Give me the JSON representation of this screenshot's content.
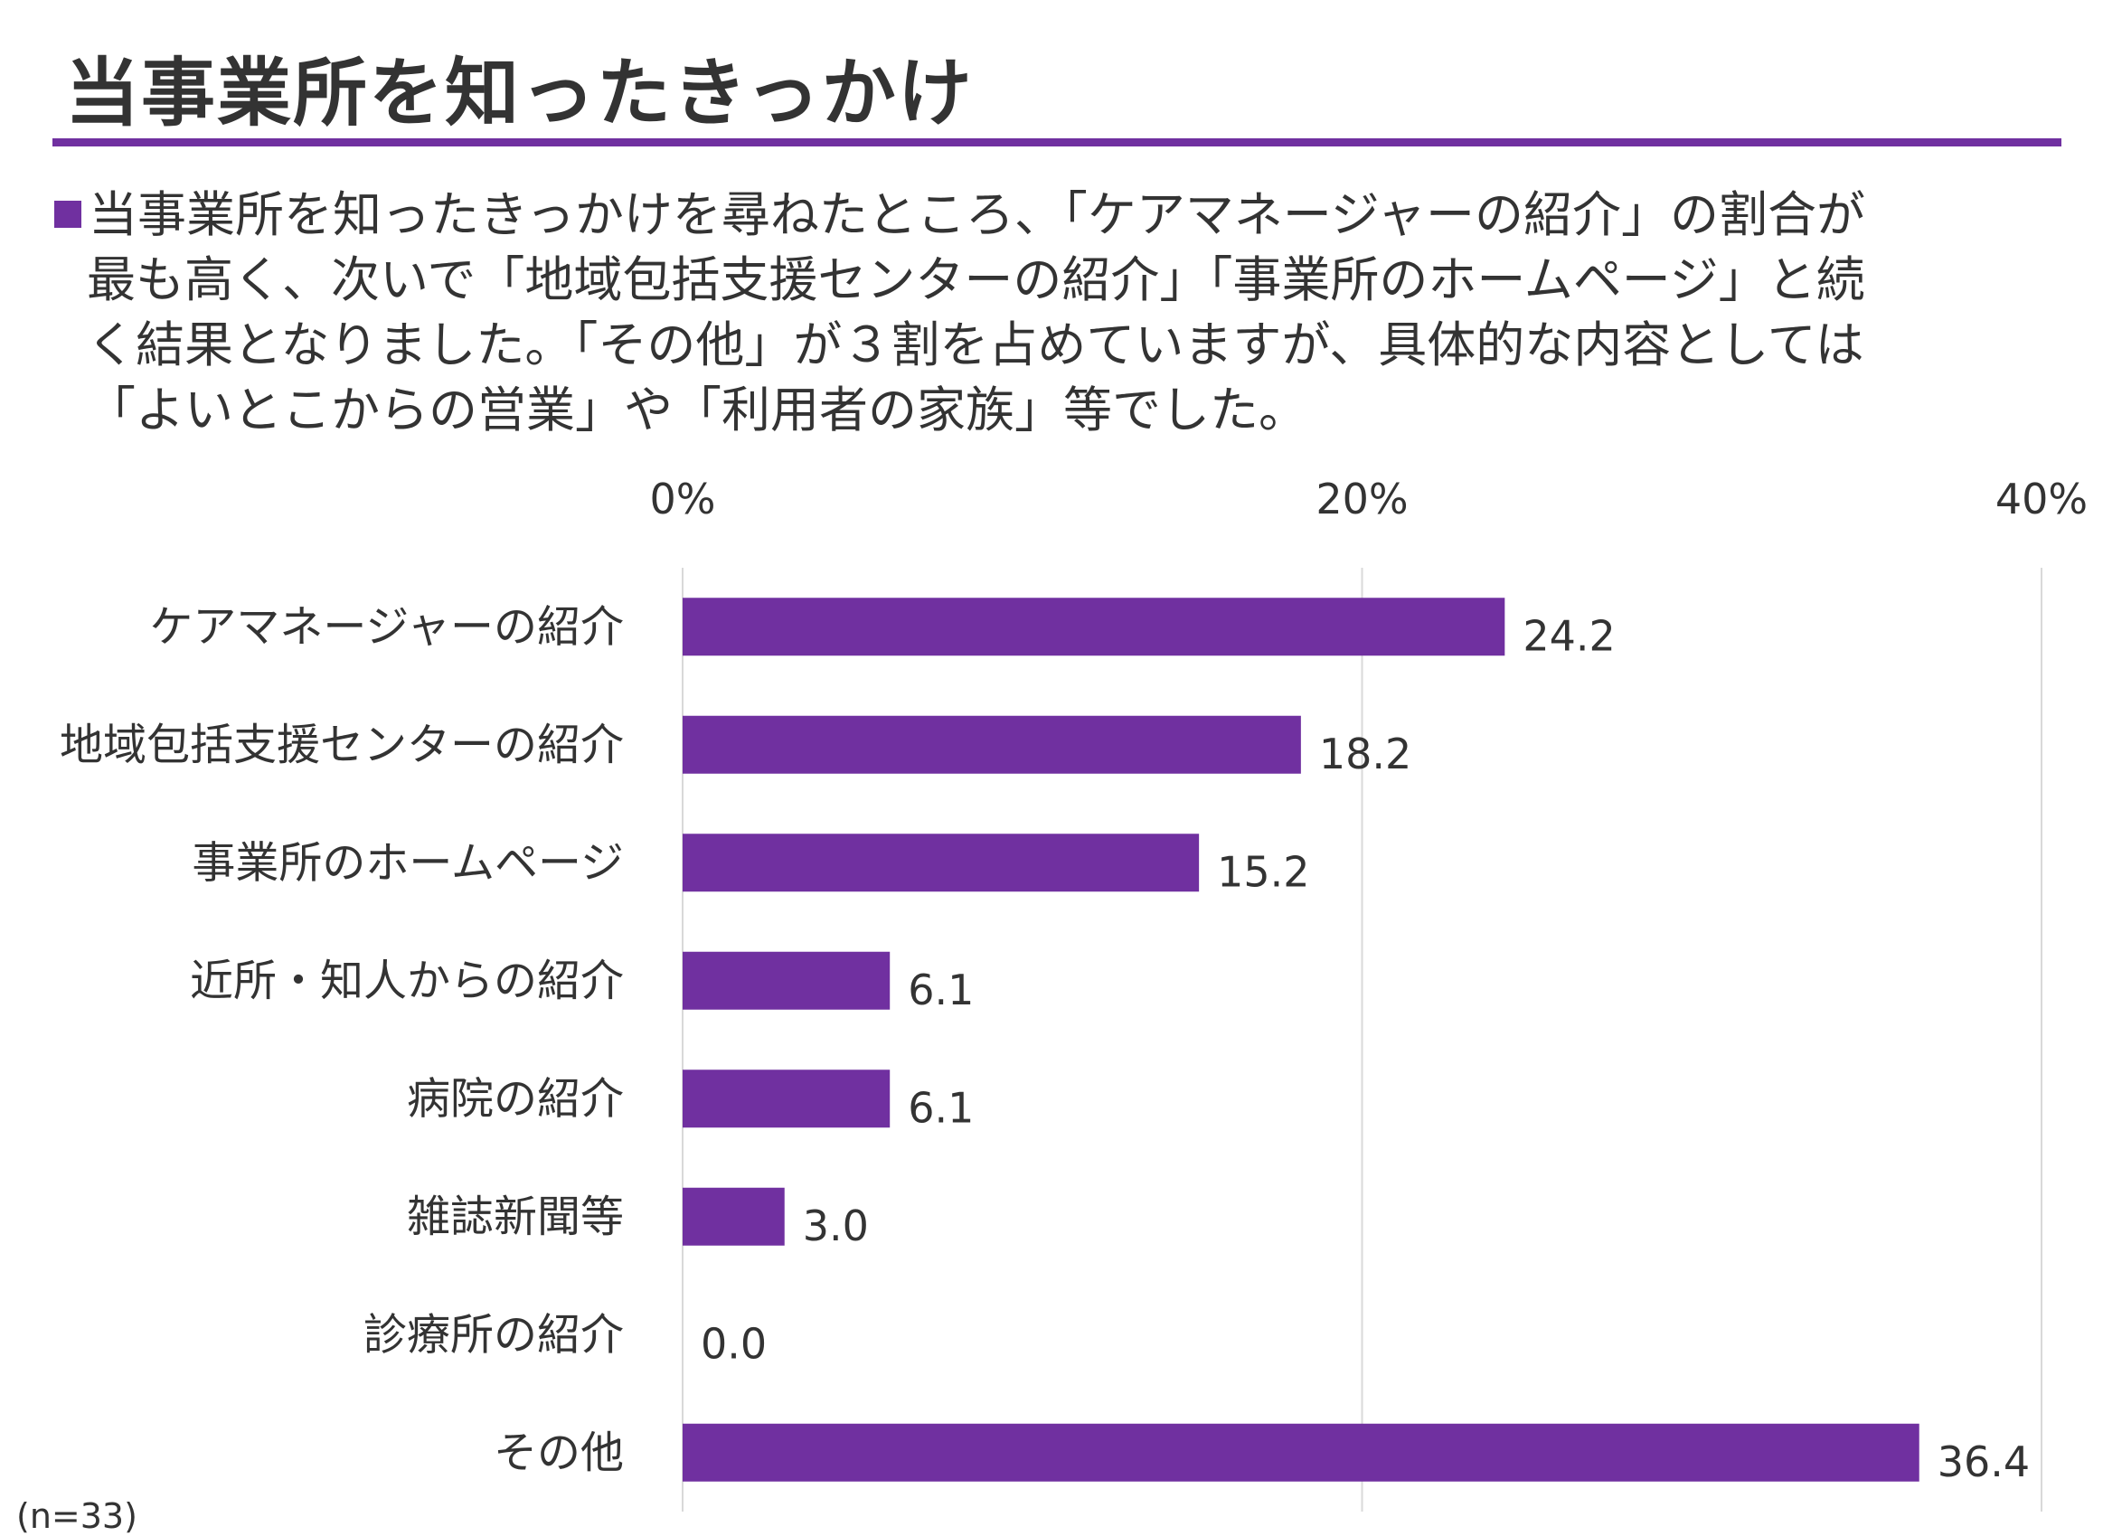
{
  "header": {
    "title": "当事業所を知ったきっかけ",
    "accent_color": "#7030A0"
  },
  "description": {
    "lines": [
      "当事業所を知ったきっかけを尋ねたところ、「ケアマネージャーの紹介」の割合が",
      "最も高く、次いで「地域包括支援センターの紹介」「事業所のホームページ」と続",
      "く結果となりました。「その他」が３割を占めていますが、具体的な内容としては",
      "「よいとこからの営業」や「利用者の家族」等でした。"
    ]
  },
  "chart_data": {
    "type": "bar",
    "orientation": "horizontal",
    "categories": [
      "ケアマネージャーの紹介",
      "地域包括支援センターの紹介",
      "事業所のホームページ",
      "近所・知人からの紹介",
      "病院の紹介",
      "雑誌新聞等",
      "診療所の紹介",
      "その他"
    ],
    "values": [
      24.2,
      18.2,
      15.2,
      6.1,
      6.1,
      3.0,
      0.0,
      36.4
    ],
    "value_labels": [
      "24.2",
      "18.2",
      "15.2",
      "6.1",
      "6.1",
      "3.0",
      "0.0",
      "36.4"
    ],
    "xlim": [
      0,
      40
    ],
    "x_ticks": [
      0,
      20,
      40
    ],
    "x_tick_labels": [
      "0%",
      "20%",
      "40%"
    ],
    "x_axis_position": "top",
    "grid": true,
    "bar_color": "#7030A0"
  },
  "footnote": "(n=33)"
}
